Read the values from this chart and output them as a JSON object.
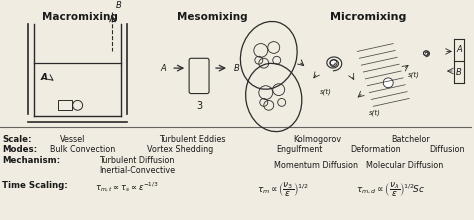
{
  "bg_color": "#f0ece2",
  "title_macromixing": "Macromixing",
  "title_mesomixing": "Mesomixing",
  "title_micromixing": "Micromixing",
  "scale_label": "Scale:",
  "modes_label": "Modes:",
  "mechanism_label": "Mechanism:",
  "timescaling_label": "Time Scaling:",
  "scale_vessel": "Vessel",
  "scale_turbulent": "Turbulent Eddies",
  "scale_kolmogorov": "Kolmogorov",
  "scale_batchelor": "Batchelor",
  "modes_bulk": "Bulk Convection",
  "modes_vortex": "Vortex Shedding",
  "modes_engulfment": "Engulfment",
  "modes_deformation": "Deformation",
  "modes_diffusion": "Diffusion",
  "mechanism_turbulent": "Turbulent Diffusion",
  "mechanism_inertial": "Inertial-Convective",
  "mechanism_momentum": "Momentum Diffusion",
  "mechanism_molecular": "Molecular Diffusion",
  "timescaling_macro": "$\\tau_{m,t} \\propto \\tau_s \\propto \\varepsilon^{-1/3}$",
  "timescaling_micro1": "$\\tau_m \\propto \\left(\\dfrac{\\nu_3}{\\varepsilon}\\right)^{1/2}$",
  "timescaling_micro2": "$\\tau_{m,d} \\propto \\left(\\dfrac{\\nu_\\lambda}{\\varepsilon}\\right)^{1/2}\\! Sc$",
  "text_color": "#1a1a1a",
  "line_color": "#2a2a2a",
  "fig_w": 4.74,
  "fig_h": 2.2,
  "dpi": 100
}
